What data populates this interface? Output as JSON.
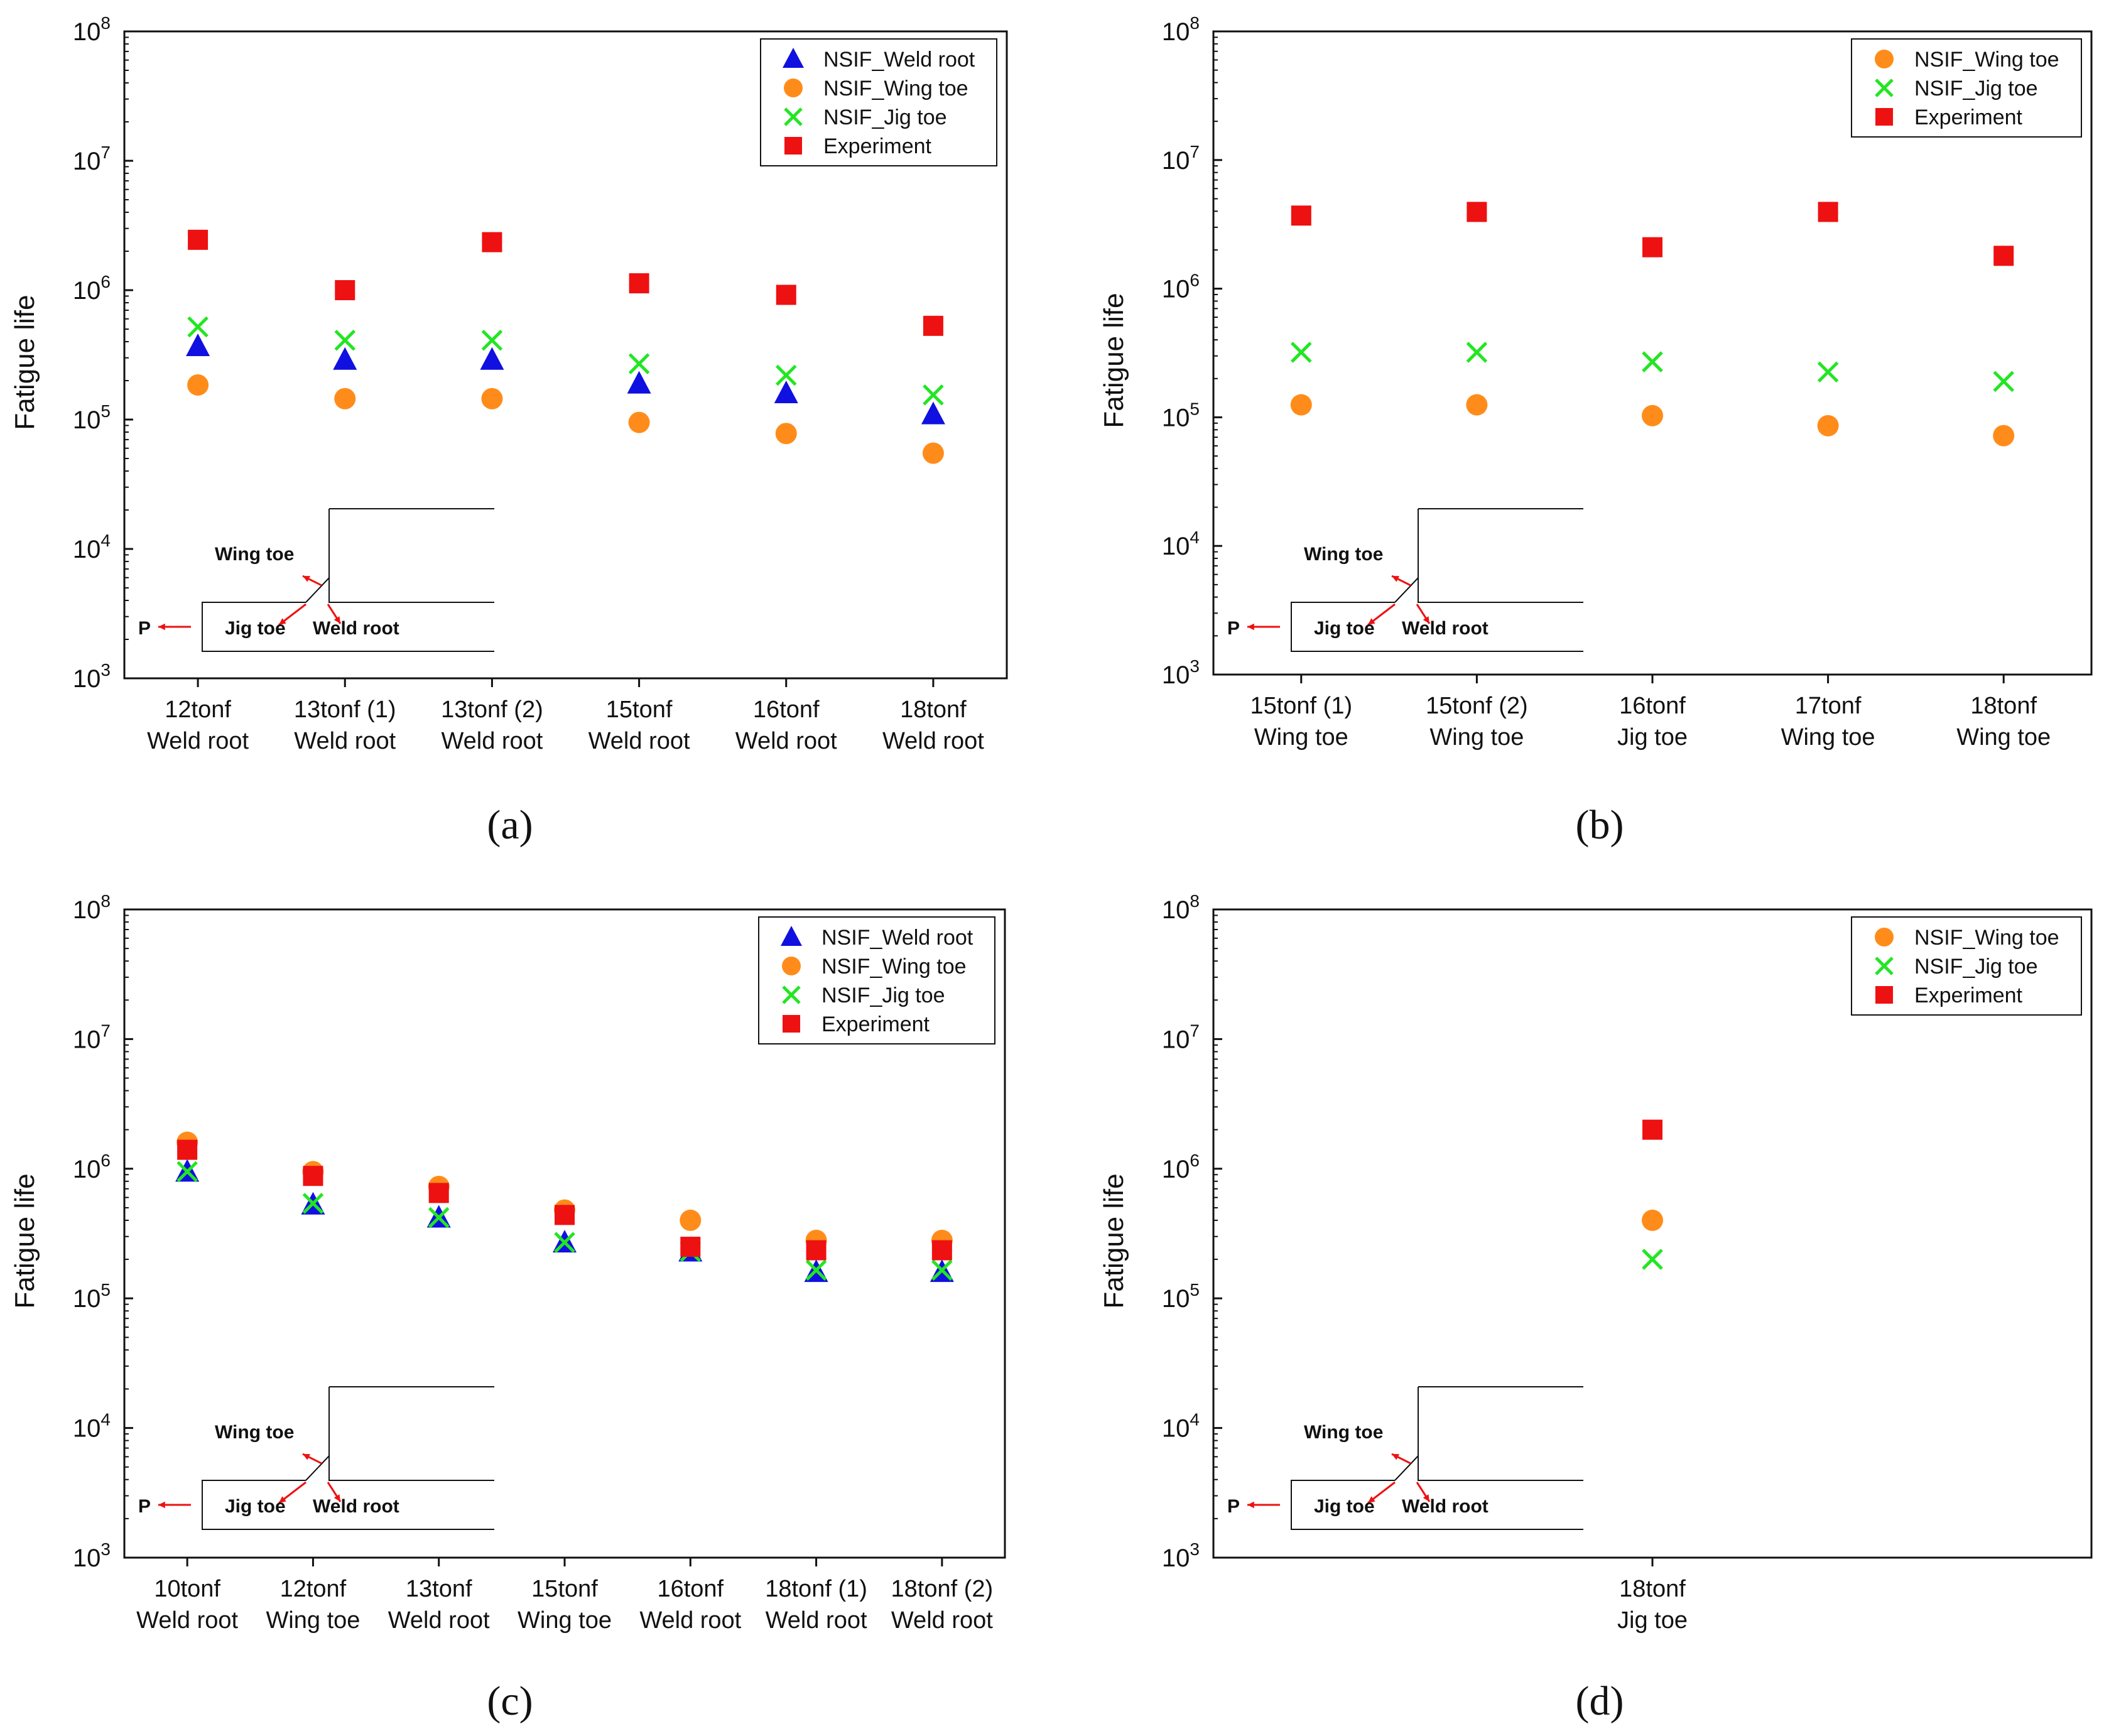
{
  "figure": {
    "colors": {
      "weld_root": "#1010e0",
      "wing_toe": "#ff8c1a",
      "jig_toe": "#22e622",
      "experiment": "#ee1111",
      "arrow": "#ee1111",
      "axis": "#111111"
    },
    "inset": {
      "wing_toe": "Wing toe",
      "jig_toe": "Jig toe",
      "weld_root": "Weld root",
      "load": "P"
    },
    "y_tick_exponents": [
      "3",
      "4",
      "5",
      "6",
      "7",
      "8"
    ],
    "y_tick_base": "10"
  },
  "chart_data": [
    {
      "panel": "(a)",
      "type": "scatter",
      "yscale": "log",
      "ylim": [
        1000,
        100000000
      ],
      "xlabel": "",
      "ylabel": "Fatigue life",
      "legend_position": "top-right",
      "categories": [
        [
          "12tonf",
          "Weld root"
        ],
        [
          "13tonf (1)",
          "Weld root"
        ],
        [
          "13tonf (2)",
          "Weld root"
        ],
        [
          "15tonf",
          "Weld root"
        ],
        [
          "16tonf",
          "Weld root"
        ],
        [
          "18tonf",
          "Weld root"
        ]
      ],
      "series": [
        {
          "name": "NSIF_Weld root",
          "marker": "triangle",
          "color": "#1010e0",
          "values": [
            370000,
            290000,
            290000,
            190000,
            160000,
            110000
          ]
        },
        {
          "name": "NSIF_Wing toe",
          "marker": "circle",
          "color": "#ff8c1a",
          "values": [
            185000,
            145000,
            145000,
            95000,
            78000,
            55000
          ]
        },
        {
          "name": "NSIF_Jig toe",
          "marker": "x",
          "color": "#22e622",
          "values": [
            520000,
            410000,
            410000,
            270000,
            220000,
            155000
          ]
        },
        {
          "name": "Experiment",
          "marker": "square",
          "color": "#ee1111",
          "values": [
            2450000,
            1000000,
            2350000,
            1130000,
            920000,
            530000
          ]
        }
      ]
    },
    {
      "panel": "(b)",
      "type": "scatter",
      "yscale": "log",
      "ylim": [
        1000,
        100000000
      ],
      "xlabel": "",
      "ylabel": "Fatigue life",
      "legend_position": "top-right",
      "categories": [
        [
          "15tonf (1)",
          "Wing toe"
        ],
        [
          "15tonf (2)",
          "Wing toe"
        ],
        [
          "16tonf",
          "Jig toe"
        ],
        [
          "17tonf",
          "Wing toe"
        ],
        [
          "18tonf",
          "Wing toe"
        ]
      ],
      "series": [
        {
          "name": "NSIF_Wing toe",
          "marker": "circle",
          "color": "#ff8c1a",
          "values": [
            125000,
            125000,
            103000,
            86000,
            72000
          ]
        },
        {
          "name": "NSIF_Jig toe",
          "marker": "x",
          "color": "#22e622",
          "values": [
            320000,
            320000,
            270000,
            225000,
            190000
          ]
        },
        {
          "name": "Experiment",
          "marker": "square",
          "color": "#ee1111",
          "values": [
            3700000,
            3950000,
            2100000,
            3950000,
            1800000
          ]
        }
      ]
    },
    {
      "panel": "(c)",
      "type": "scatter",
      "yscale": "log",
      "ylim": [
        1000,
        100000000
      ],
      "xlabel": "",
      "ylabel": "Fatigue life",
      "legend_position": "top-right",
      "categories": [
        [
          "10tonf",
          "Weld root"
        ],
        [
          "12tonf",
          "Wing toe"
        ],
        [
          "13tonf",
          "Weld root"
        ],
        [
          "15tonf",
          "Wing toe"
        ],
        [
          "16tonf",
          "Weld root"
        ],
        [
          "18tonf (1)",
          "Weld root"
        ],
        [
          "18tonf (2)",
          "Weld root"
        ]
      ],
      "series": [
        {
          "name": "NSIF_Weld root",
          "marker": "triangle",
          "color": "#1010e0",
          "values": [
            950000,
            530000,
            420000,
            270000,
            230000,
            160000,
            160000
          ]
        },
        {
          "name": "NSIF_Wing toe",
          "marker": "circle",
          "color": "#ff8c1a",
          "values": [
            1600000,
            950000,
            730000,
            480000,
            400000,
            280000,
            280000
          ]
        },
        {
          "name": "NSIF_Jig toe",
          "marker": "x",
          "color": "#22e622",
          "values": [
            950000,
            540000,
            420000,
            270000,
            230000,
            165000,
            165000
          ]
        },
        {
          "name": "Experiment",
          "marker": "square",
          "color": "#ee1111",
          "values": [
            1400000,
            880000,
            650000,
            440000,
            250000,
            235000,
            235000
          ]
        }
      ]
    },
    {
      "panel": "(d)",
      "type": "scatter",
      "yscale": "log",
      "ylim": [
        1000,
        100000000
      ],
      "xlabel": "",
      "ylabel": "Fatigue life",
      "legend_position": "top-right",
      "categories": [
        [
          "18tonf",
          "Jig toe"
        ]
      ],
      "series": [
        {
          "name": "NSIF_Wing toe",
          "marker": "circle",
          "color": "#ff8c1a",
          "values": [
            400000
          ]
        },
        {
          "name": "NSIF_Jig toe",
          "marker": "x",
          "color": "#22e622",
          "values": [
            200000
          ]
        },
        {
          "name": "Experiment",
          "marker": "square",
          "color": "#ee1111",
          "values": [
            2000000
          ]
        }
      ]
    }
  ]
}
